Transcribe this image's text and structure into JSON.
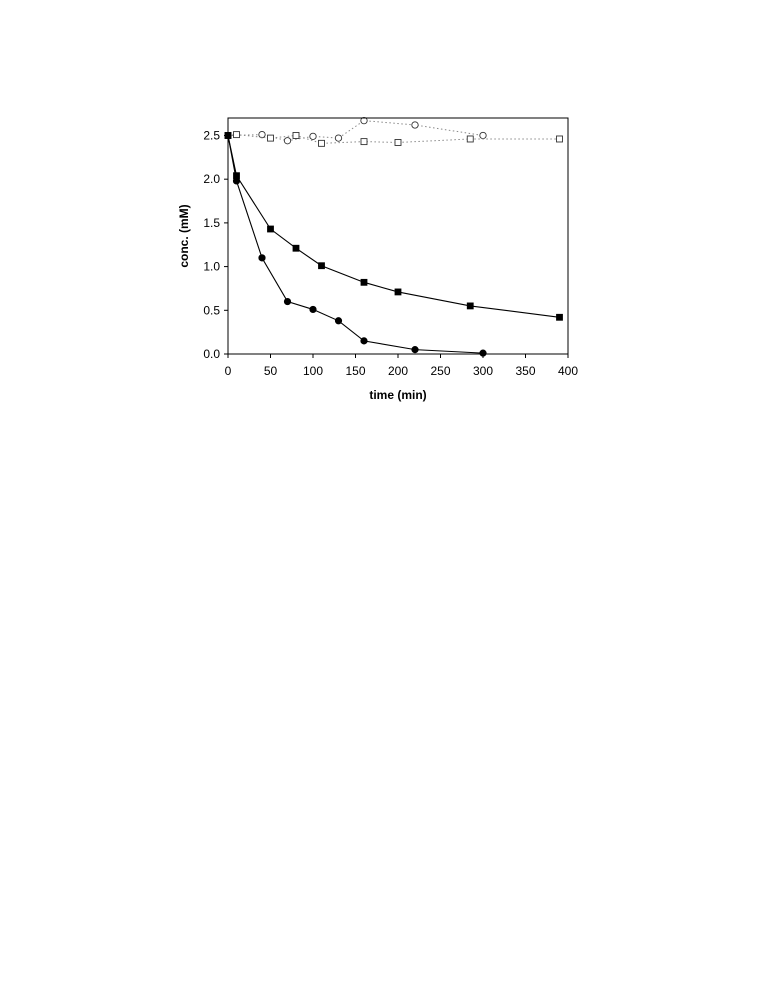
{
  "chart_data": {
    "type": "line",
    "xlabel": "time (min)",
    "ylabel": "conc. (mM)",
    "xlim": [
      0,
      400
    ],
    "ylim": [
      0,
      2.7
    ],
    "xticks": [
      0,
      50,
      100,
      150,
      200,
      250,
      300,
      350,
      400
    ],
    "yticks": [
      0.0,
      0.5,
      1.0,
      1.5,
      2.0,
      2.5
    ],
    "xtick_labels": [
      "0",
      "50",
      "100",
      "150",
      "200",
      "250",
      "300",
      "350",
      "400"
    ],
    "ytick_labels": [
      "0.0",
      "0.5",
      "1.0",
      "1.5",
      "2.0",
      "2.5"
    ],
    "grid": false,
    "legend": "none",
    "series": [
      {
        "marker": "filled-circle",
        "line": "solid",
        "color": "#000000",
        "x": [
          0,
          10,
          40,
          70,
          100,
          130,
          160,
          220,
          300
        ],
        "y": [
          2.5,
          1.98,
          1.1,
          0.6,
          0.51,
          0.38,
          0.15,
          0.05,
          0.01
        ]
      },
      {
        "marker": "filled-square",
        "line": "solid",
        "color": "#000000",
        "x": [
          0,
          10,
          50,
          80,
          110,
          160,
          200,
          285,
          390
        ],
        "y": [
          2.5,
          2.04,
          1.43,
          1.21,
          1.01,
          0.82,
          0.71,
          0.55,
          0.42
        ]
      },
      {
        "marker": "open-circle",
        "line": "dotted",
        "color": "#888888",
        "x": [
          0,
          40,
          70,
          100,
          130,
          160,
          220,
          300
        ],
        "y": [
          2.5,
          2.51,
          2.44,
          2.49,
          2.47,
          2.67,
          2.62,
          2.5
        ]
      },
      {
        "marker": "open-square",
        "line": "dotted",
        "color": "#888888",
        "x": [
          0,
          10,
          50,
          80,
          110,
          160,
          200,
          285,
          390
        ],
        "y": [
          2.5,
          2.51,
          2.47,
          2.5,
          2.41,
          2.43,
          2.42,
          2.46,
          2.46
        ]
      }
    ]
  }
}
